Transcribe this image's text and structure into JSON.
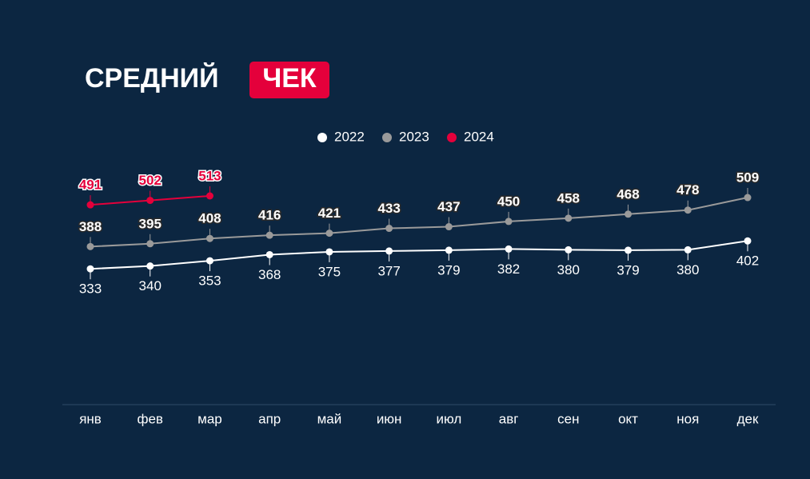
{
  "chart_data": {
    "type": "line",
    "title": "СРЕДНИЙ",
    "title_highlight": "ЧЕК",
    "categories": [
      "янв",
      "фев",
      "мар",
      "апр",
      "май",
      "июн",
      "июл",
      "авг",
      "сен",
      "окт",
      "ноя",
      "дек"
    ],
    "series": [
      {
        "name": "2022",
        "color": "#ffffff",
        "values": [
          333,
          340,
          353,
          368,
          375,
          377,
          379,
          382,
          380,
          379,
          380,
          402
        ]
      },
      {
        "name": "2023",
        "color": "#9a9a9a",
        "values": [
          388,
          395,
          408,
          416,
          421,
          433,
          437,
          450,
          458,
          468,
          478,
          509
        ]
      },
      {
        "name": "2024",
        "color": "#e4003b",
        "values": [
          491,
          502,
          513,
          null,
          null,
          null,
          null,
          null,
          null,
          null,
          null,
          null
        ]
      }
    ]
  }
}
